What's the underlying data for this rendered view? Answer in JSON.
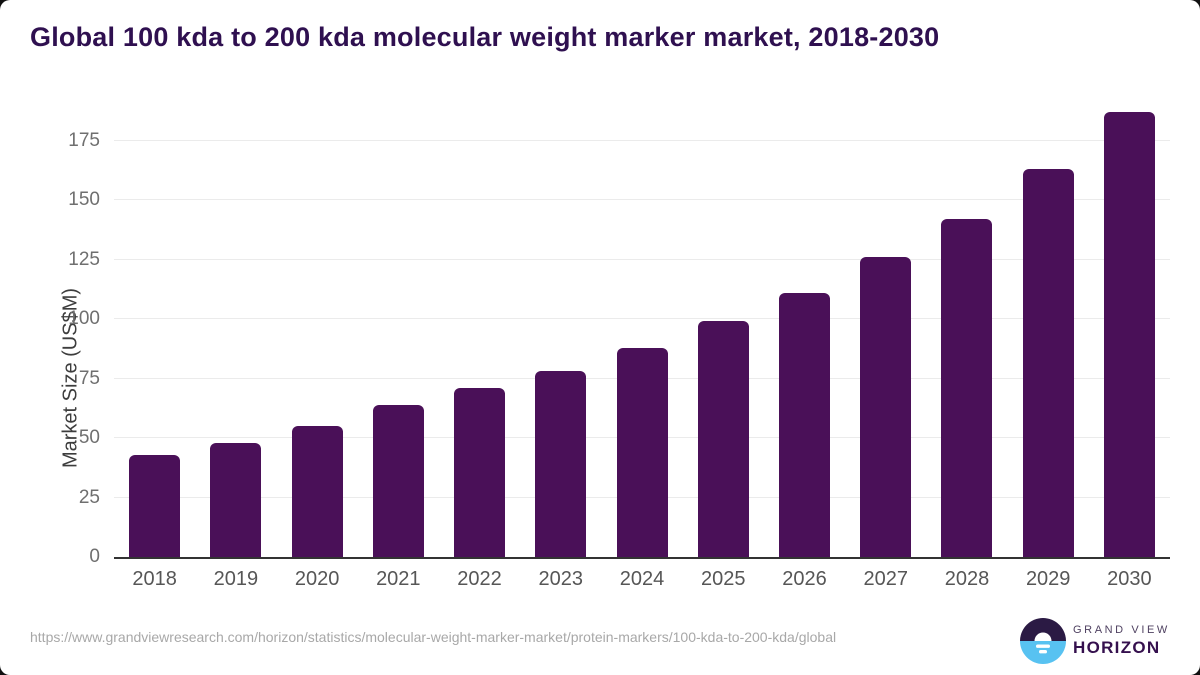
{
  "header": {
    "title": "Global 100 kda to 200 kda molecular weight marker market, 2018-2030"
  },
  "chart_data": {
    "type": "bar",
    "title": "Global 100 kda to 200 kda molecular weight marker market, 2018-2030",
    "categories": [
      "2018",
      "2019",
      "2020",
      "2021",
      "2022",
      "2023",
      "2024",
      "2025",
      "2026",
      "2027",
      "2028",
      "2029",
      "2030"
    ],
    "values": [
      43,
      48,
      55,
      64,
      71,
      78,
      88,
      99,
      111,
      126,
      142,
      163,
      187
    ],
    "xlabel": "",
    "ylabel": "Market Size (US$M)",
    "ylim": [
      0,
      190
    ],
    "yticks": [
      0,
      25,
      50,
      75,
      100,
      125,
      150,
      175
    ],
    "grid": true,
    "legend": "none",
    "bar_color": "#4a1058"
  },
  "footer": {
    "source_url": "https://www.grandviewresearch.com/horizon/statistics/molecular-weight-marker-market/protein-markers/100-kda-to-200-kda/global",
    "logo": {
      "line1": "GRAND VIEW",
      "line2": "HORIZON",
      "icon": "sunrise-horizon-icon"
    }
  },
  "colors": {
    "title_text": "#2f1050",
    "bar": "#4a1058",
    "axis_line": "#333333",
    "tick_label": "#6f6f6f",
    "gridline": "#ebebeb",
    "url_text": "#a8a8a8",
    "logo_dark": "#2b1a44",
    "logo_blue": "#58c2f1"
  }
}
